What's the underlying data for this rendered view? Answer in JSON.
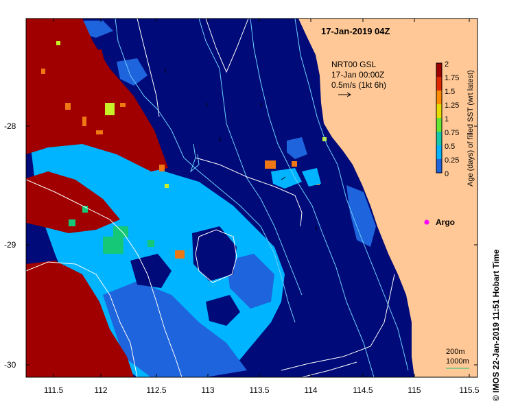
{
  "map": {
    "title": "17-Jan-2019 04Z",
    "x_ticks": [
      "111.5",
      "112",
      "112.5",
      "113",
      "113.5",
      "114",
      "114.5",
      "115",
      "115.5"
    ],
    "y_ticks": [
      "-28",
      "-29",
      "-30"
    ],
    "vector_info": {
      "line1": "NRT00 GSL",
      "line2": "17-Jan 00:00Z",
      "line3": "0.5m/s (1kt 6h)"
    },
    "argo_label": "Argo",
    "contour_legend": {
      "line1": "200m",
      "line2": "1000m"
    },
    "credit": "© IMOS 22-Jan-2019 11:51 Hobart Time",
    "colors": {
      "ocean_deep": "#000a78",
      "land": "#ffc896",
      "cyan": "#00b4ff",
      "mid_blue": "#1e64dc",
      "dark_red": "#a00000",
      "orange": "#f07814",
      "green": "#14c878",
      "yellow_green": "#c8f028",
      "argo": "#ff00ff",
      "contour": "#6ed2ff",
      "current_line": "#ffffff"
    }
  },
  "colorbar": {
    "label": "Age (days) of filled SST (wrt latest)",
    "tick_labels": [
      "2",
      "1.75",
      "1.5",
      "1.25",
      "1",
      "0.75",
      "0.5",
      "0.25",
      "0"
    ],
    "colors": [
      "#a00000",
      "#e02800",
      "#ff8c00",
      "#e6dc00",
      "#64e632",
      "#14c8aa",
      "#00b4ff",
      "#1e64dc",
      "#000a78"
    ]
  }
}
